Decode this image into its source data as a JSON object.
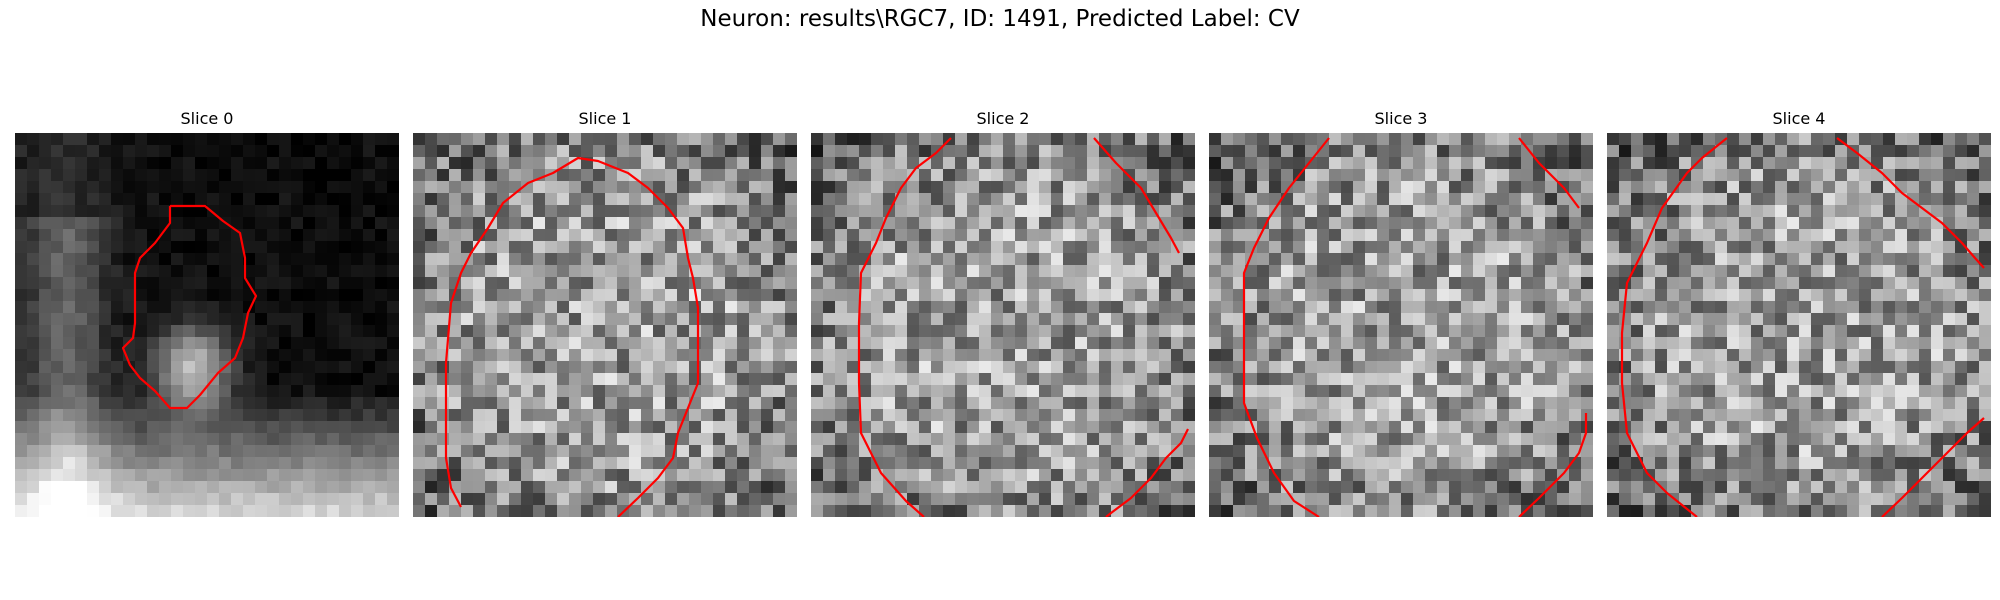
{
  "figure": {
    "title": "Neuron: results\\RGC7, ID: 1491, Predicted Label: CV",
    "panels": [
      {
        "title": "Slice 0",
        "seed": 11,
        "image_kind": "dark-top-bright-bottom",
        "contour_color": "#ff0000"
      },
      {
        "title": "Slice 1",
        "seed": 23,
        "image_kind": "gray-noise-cell",
        "contour_color": "#ff0000"
      },
      {
        "title": "Slice 2",
        "seed": 37,
        "image_kind": "gray-noise-cell",
        "contour_color": "#ff0000"
      },
      {
        "title": "Slice 3",
        "seed": 51,
        "image_kind": "gray-noise-cell",
        "contour_color": "#ff0000"
      },
      {
        "title": "Slice 4",
        "seed": 67,
        "image_kind": "gray-noise-cell",
        "contour_color": "#ff0000"
      }
    ]
  }
}
